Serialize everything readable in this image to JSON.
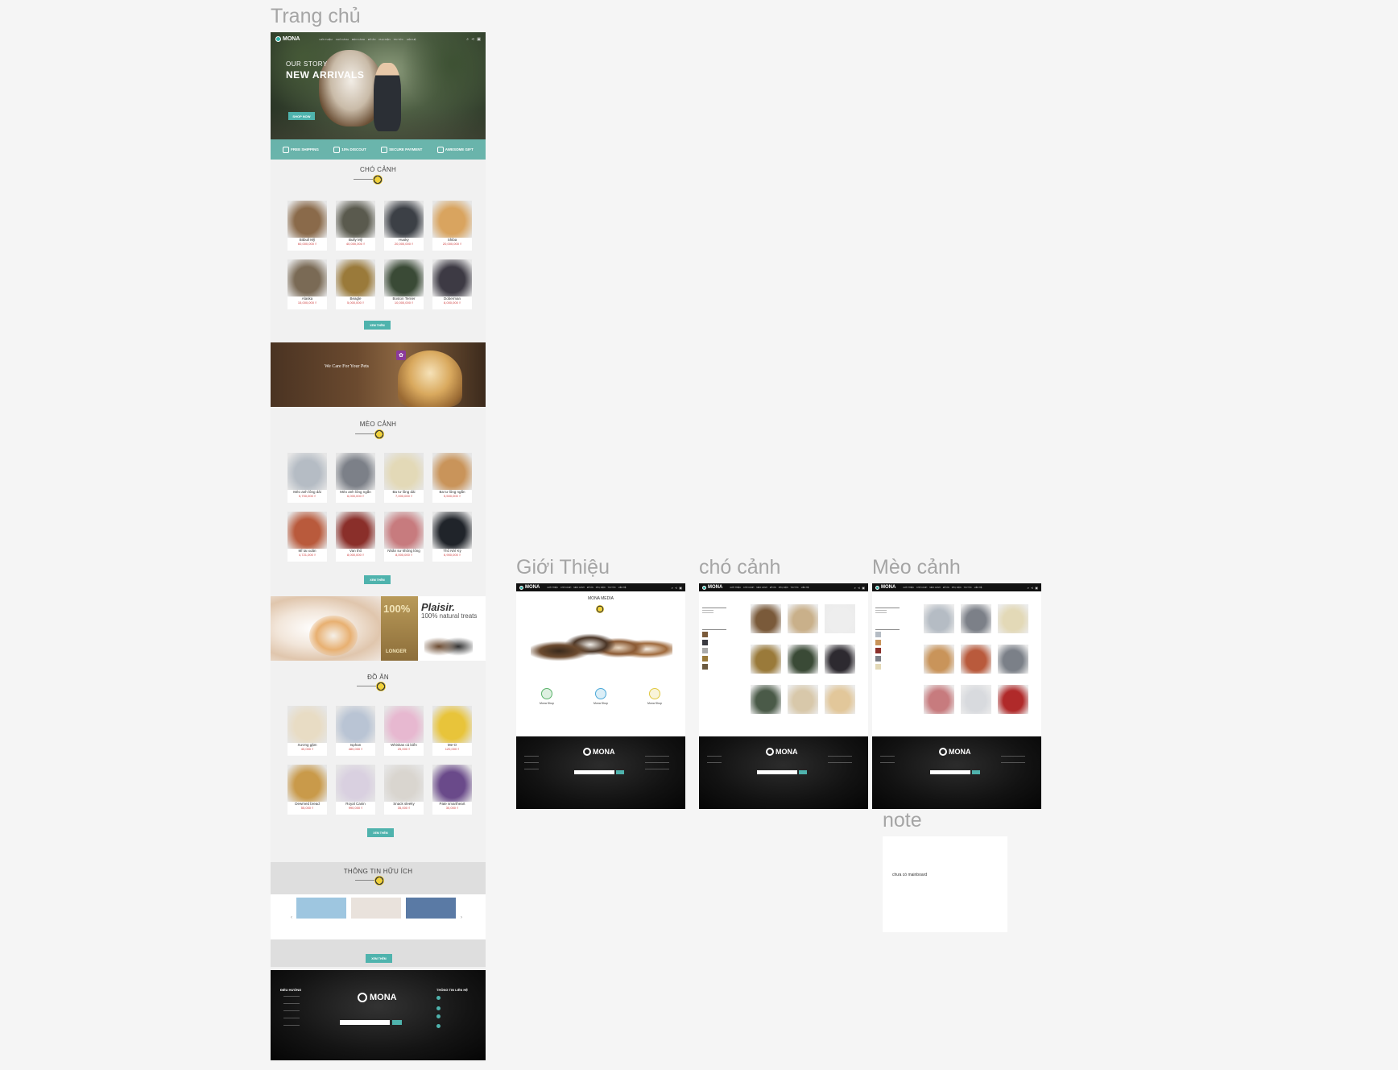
{
  "frames": {
    "home_label": "Trang chủ",
    "about_label": "Giới Thiệu",
    "dogs_label": "chó cảnh",
    "cats_label": "Mèo cảnh",
    "note_label": "note"
  },
  "nav": {
    "brand": "MONA",
    "menu": [
      "GIỚI THIỆU",
      "CHÓ CẢNH",
      "MÈO CẢNH",
      "ĐỒ ĂN",
      "PHỤ KIỆN",
      "TIN TỨC",
      "LIÊN HỆ"
    ]
  },
  "hero": {
    "eyebrow": "OUR STORY",
    "title": "NEW ARRIVALS",
    "button": "SHOP NOW"
  },
  "features": [
    {
      "title": "FREE SHIPPING",
      "icon": "truck-icon"
    },
    {
      "title": "10% DISCOUT",
      "icon": "tag-icon"
    },
    {
      "title": "SECURE PAYMENT",
      "icon": "card-icon"
    },
    {
      "title": "AWESOME GIFT",
      "icon": "gift-icon"
    }
  ],
  "sections": {
    "dogs": "CHÓ CẢNH",
    "cats": "MÈO CẢNH",
    "food": "ĐỒ ĂN",
    "info": "THÔNG TIN HỮU ÍCH",
    "more": "XEM THÊM"
  },
  "dogs": [
    {
      "name": "Bitbull Mỹ",
      "price": "60,000,000 ₫",
      "color": "#8a6a4a"
    },
    {
      "name": "Bully Mỹ",
      "price": "40,000,000 ₫",
      "color": "#5a5a4e"
    },
    {
      "name": "Husky",
      "price": "20,000,000 ₫",
      "color": "#3c4046"
    },
    {
      "name": "Shiba",
      "price": "20,000,000 ₫",
      "color": "#d9a45f"
    },
    {
      "name": "Alaska",
      "price": "15,000,000 ₫",
      "color": "#7a6a55"
    },
    {
      "name": "Beagle",
      "price": "5,000,000 ₫",
      "color": "#9a7a3a"
    },
    {
      "name": "Boston Terrier",
      "price": "10,000,000 ₫",
      "color": "#3a4a36"
    },
    {
      "name": "Doberman",
      "price": "8,000,000 ₫",
      "color": "#3d3a44"
    }
  ],
  "banner1": {
    "title": "We Care For Your Pets"
  },
  "cats": [
    {
      "name": "Mèo anh lông dài",
      "price": "5,700,000 ₫",
      "color": "#b5bcc4"
    },
    {
      "name": "Mèo anh lông ngắn",
      "price": "6,000,000 ₫",
      "color": "#7c8088"
    },
    {
      "name": "Ba tư lông dài",
      "price": "7,000,000 ₫",
      "color": "#e3d9b7"
    },
    {
      "name": "Ba tư lông ngắn",
      "price": "5,500,000 ₫",
      "color": "#c9945a"
    },
    {
      "name": "Mĩ tai xoăn",
      "price": "4,721,000 ₫",
      "color": "#b95a3c"
    },
    {
      "name": "Van thổ",
      "price": "8,000,000 ₫",
      "color": "#8a2f2a"
    },
    {
      "name": "Nhân sư không lông",
      "price": "8,000,000 ₫",
      "color": "#c77b7e"
    },
    {
      "name": "Thổ Nhĩ Kỳ",
      "price": "6,900,000 ₫",
      "color": "#20242a"
    }
  ],
  "banner2": {
    "pct": "100%",
    "longer": "LONGER",
    "brand": "Plaisir.",
    "tagline": "100% natural treats"
  },
  "food": [
    {
      "name": "Xương gặm",
      "price": "40,000 ₫",
      "color": "#e8dcc4"
    },
    {
      "name": "Isphan",
      "price": "480,000 ₫",
      "color": "#b9c4d4"
    },
    {
      "name": "Whiskas cá biển",
      "price": "25,000 ₫",
      "color": "#e7b8d0"
    },
    {
      "name": "Me-O",
      "price": "120,000 ₫",
      "color": "#e8c43a"
    },
    {
      "name": "Dewmed bread",
      "price": "55,000 ₫",
      "color": "#c99a4a"
    },
    {
      "name": "Royal Canin",
      "price": "990,000 ₫",
      "color": "#d9d0e0"
    },
    {
      "name": "Snack sleeky",
      "price": "35,000 ₫",
      "color": "#d9d5cf"
    },
    {
      "name": "Pate smartheart",
      "price": "30,000 ₫",
      "color": "#6a4a8a"
    }
  ],
  "posts": [
    {
      "color": "#9ec6e0"
    },
    {
      "color": "#e9e2dc"
    },
    {
      "color": "#5a7aa5"
    }
  ],
  "footer": {
    "col1": "ĐIỀU HƯỚNG",
    "col2": "THÔNG TIN LIÊN HỆ",
    "brand": "MONA"
  },
  "about": {
    "brand": "MONA MEDIA",
    "cols": [
      {
        "title": "Mona Shop",
        "color": "#5ab36a"
      },
      {
        "title": "Mona Shop",
        "color": "#4aa8d8"
      },
      {
        "title": "Mona Shop",
        "color": "#e0c840"
      }
    ]
  },
  "dog_page": {
    "products": [
      "#7a5a3a",
      "#c9b08a",
      "#eeeeee",
      "#9a7a3a",
      "#3a4a36",
      "#2d2a30",
      "#4a5a48",
      "#d8c8aa",
      "#e2c79a"
    ]
  },
  "cat_page": {
    "products": [
      "#b5bcc4",
      "#7c8088",
      "#e3d9b7",
      "#c9945a",
      "#b95a3c",
      "#7b8088",
      "#c77b7e",
      "#d8dade",
      "#b02a2a"
    ]
  },
  "note": {
    "text": "chưa có mainboard"
  }
}
